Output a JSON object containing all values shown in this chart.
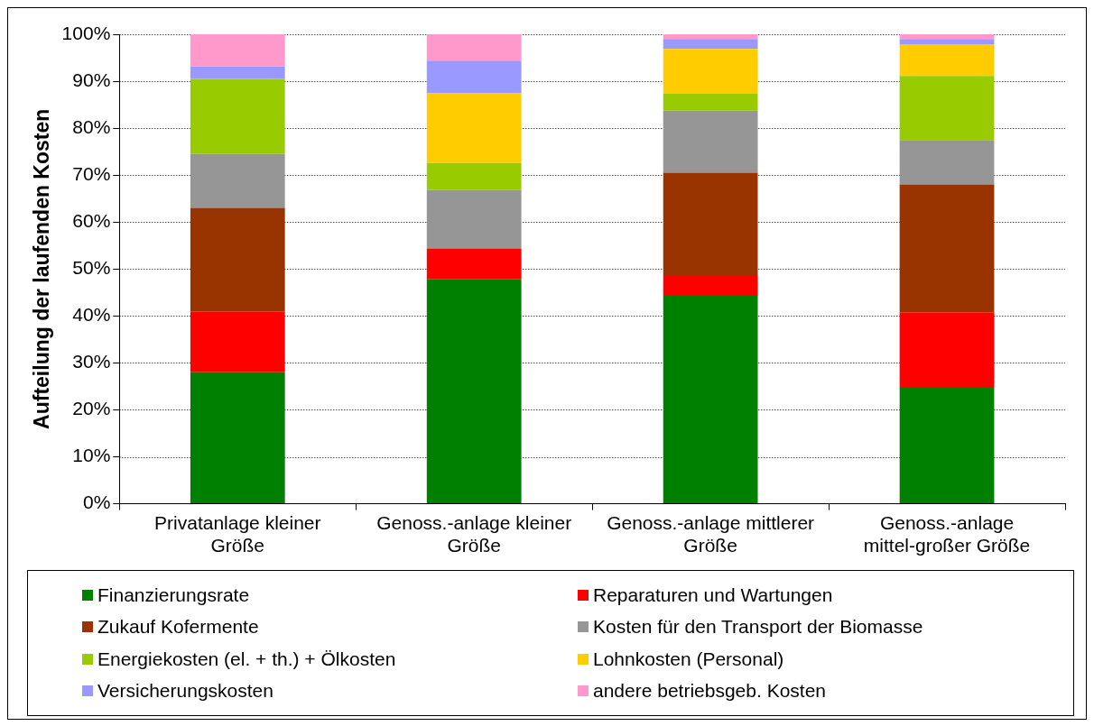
{
  "chart_data": {
    "type": "bar",
    "stacked": true,
    "ylabel": "Aufteilung der laufenden Kosten",
    "categories": [
      "Privatanlage kleiner Größe",
      "Genoss.-anlage kleiner Größe",
      "Genoss.-anlage mittlerer Größe",
      "Genoss.-anlage mittel-großer Größe"
    ],
    "series": [
      {
        "name": "Finanzierungsrate",
        "color": "#008000",
        "values": [
          28,
          47.8,
          44.3,
          24.7
        ]
      },
      {
        "name": "Reparaturen und Wartungen",
        "color": "#ff0000",
        "values": [
          13,
          6.6,
          4.2,
          16.1
        ]
      },
      {
        "name": "Zukauf Kofermente",
        "color": "#993300",
        "values": [
          22,
          0,
          22,
          27.2
        ]
      },
      {
        "name": "Kosten für den Transport der Biomasse",
        "color": "#969696",
        "values": [
          11.5,
          12.4,
          13.2,
          9.5
        ]
      },
      {
        "name": "Energiekosten (el. + th.) + Ölkosten",
        "color": "#99cc00",
        "values": [
          16,
          5.8,
          3.7,
          13.6
        ]
      },
      {
        "name": "Lohnkosten (Personal)",
        "color": "#ffcc00",
        "values": [
          0,
          14.8,
          9.5,
          6.8
        ]
      },
      {
        "name": "Versicherungskosten",
        "color": "#9999ff",
        "values": [
          2.7,
          7,
          2.1,
          1.1
        ]
      },
      {
        "name": "andere betriebsgeb. Kosten",
        "color": "#ff99cc",
        "values": [
          6.8,
          5.6,
          1,
          1
        ]
      }
    ],
    "ylim": [
      0,
      100
    ],
    "yticks": [
      {
        "value": 0,
        "label": "0%"
      },
      {
        "value": 10,
        "label": "10%"
      },
      {
        "value": 20,
        "label": "20%"
      },
      {
        "value": 30,
        "label": "30%"
      },
      {
        "value": 40,
        "label": "40%"
      },
      {
        "value": 50,
        "label": "50%"
      },
      {
        "value": 60,
        "label": "60%"
      },
      {
        "value": 70,
        "label": "70%"
      },
      {
        "value": 80,
        "label": "80%"
      },
      {
        "value": 90,
        "label": "90%"
      },
      {
        "value": 100,
        "label": "100%"
      }
    ],
    "grid": "y",
    "legend": "bottom"
  }
}
